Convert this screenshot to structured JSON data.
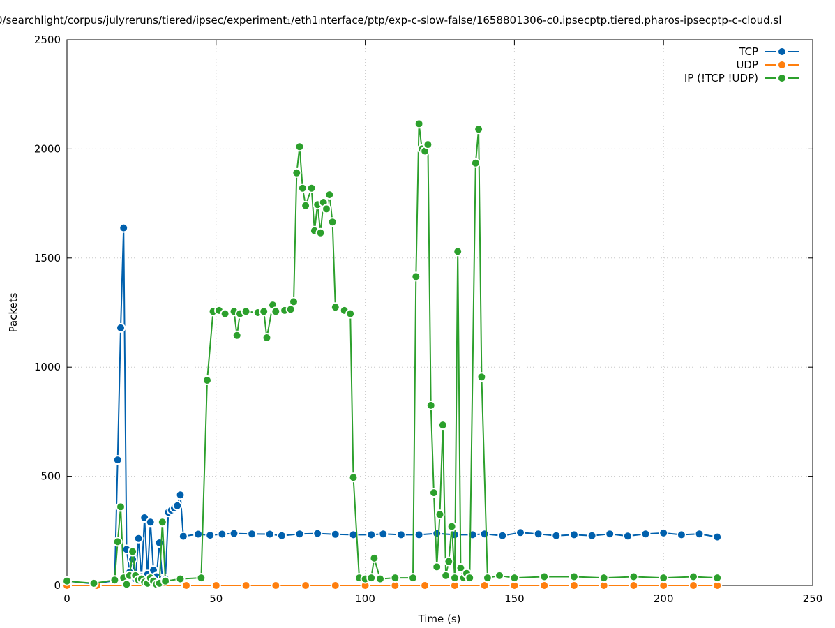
{
  "chart_data": {
    "type": "line",
    "title": "0/searchlight/corpus/julyreruns/tiered/ipsec/experiment₁/eth1ᵢnterface/ptp/exp-c-slow-false/1658801306-c0.ipsecptp.tiered.pharos-ipsecptp-c-cloud.sl",
    "xlabel": "Time (s)",
    "ylabel": "Packets",
    "xlim": [
      0,
      250
    ],
    "ylim": [
      0,
      2500
    ],
    "x_ticks": [
      "0",
      "50",
      "100",
      "150",
      "200",
      "250"
    ],
    "y_ticks": [
      "0",
      "500",
      "1000",
      "1500",
      "2000",
      "2500"
    ],
    "grid": true,
    "legend_position": "top-right",
    "series": [
      {
        "name": "TCP",
        "color": "#0060ad",
        "points": [
          [
            0,
            20
          ],
          [
            9,
            8
          ],
          [
            16,
            22
          ],
          [
            17,
            575
          ],
          [
            18,
            1180
          ],
          [
            19,
            1638
          ],
          [
            20,
            165
          ],
          [
            21,
            60
          ],
          [
            22,
            120
          ],
          [
            23,
            30
          ],
          [
            24,
            215
          ],
          [
            25,
            40
          ],
          [
            26,
            310
          ],
          [
            27,
            50
          ],
          [
            28,
            290
          ],
          [
            29,
            70
          ],
          [
            30,
            40
          ],
          [
            31,
            195
          ],
          [
            32,
            30
          ],
          [
            33,
            30
          ],
          [
            34,
            335
          ],
          [
            35,
            345
          ],
          [
            36,
            355
          ],
          [
            37,
            365
          ],
          [
            38,
            415
          ],
          [
            39,
            225
          ],
          [
            44,
            235
          ],
          [
            48,
            230
          ],
          [
            52,
            235
          ],
          [
            56,
            238
          ],
          [
            62,
            236
          ],
          [
            68,
            235
          ],
          [
            72,
            228
          ],
          [
            78,
            236
          ],
          [
            84,
            238
          ],
          [
            90,
            234
          ],
          [
            96,
            232
          ],
          [
            102,
            232
          ],
          [
            106,
            236
          ],
          [
            112,
            232
          ],
          [
            118,
            232
          ],
          [
            124,
            238
          ],
          [
            130,
            232
          ],
          [
            136,
            232
          ],
          [
            140,
            236
          ],
          [
            146,
            228
          ],
          [
            152,
            242
          ],
          [
            158,
            236
          ],
          [
            164,
            228
          ],
          [
            170,
            232
          ],
          [
            176,
            228
          ],
          [
            182,
            236
          ],
          [
            188,
            226
          ],
          [
            194,
            236
          ],
          [
            200,
            240
          ],
          [
            206,
            232
          ],
          [
            212,
            236
          ],
          [
            218,
            222
          ]
        ]
      },
      {
        "name": "UDP",
        "color": "#ff7f0e",
        "points": [
          [
            0,
            0
          ],
          [
            10,
            0
          ],
          [
            20,
            0
          ],
          [
            30,
            0
          ],
          [
            40,
            0
          ],
          [
            50,
            0
          ],
          [
            60,
            0
          ],
          [
            70,
            0
          ],
          [
            80,
            0
          ],
          [
            90,
            0
          ],
          [
            100,
            0
          ],
          [
            110,
            0
          ],
          [
            120,
            0
          ],
          [
            130,
            0
          ],
          [
            140,
            0
          ],
          [
            150,
            0
          ],
          [
            160,
            0
          ],
          [
            170,
            0
          ],
          [
            180,
            0
          ],
          [
            190,
            0
          ],
          [
            200,
            0
          ],
          [
            210,
            0
          ],
          [
            218,
            0
          ]
        ]
      },
      {
        "name": "IP (!TCP  !UDP)",
        "color": "#2ca02c",
        "points": [
          [
            0,
            20
          ],
          [
            9,
            10
          ],
          [
            16,
            25
          ],
          [
            17,
            200
          ],
          [
            18,
            360
          ],
          [
            19,
            35
          ],
          [
            20,
            5
          ],
          [
            21,
            45
          ],
          [
            22,
            155
          ],
          [
            23,
            45
          ],
          [
            24,
            25
          ],
          [
            25,
            30
          ],
          [
            26,
            15
          ],
          [
            27,
            10
          ],
          [
            28,
            35
          ],
          [
            29,
            20
          ],
          [
            30,
            5
          ],
          [
            31,
            10
          ],
          [
            32,
            290
          ],
          [
            33,
            20
          ],
          [
            38,
            30
          ],
          [
            45,
            35
          ],
          [
            47,
            940
          ],
          [
            49,
            1255
          ],
          [
            51,
            1260
          ],
          [
            53,
            1245
          ],
          [
            56,
            1255
          ],
          [
            57,
            1145
          ],
          [
            58,
            1245
          ],
          [
            60,
            1255
          ],
          [
            64,
            1250
          ],
          [
            66,
            1255
          ],
          [
            67,
            1135
          ],
          [
            69,
            1285
          ],
          [
            70,
            1255
          ],
          [
            73,
            1260
          ],
          [
            75,
            1265
          ],
          [
            76,
            1300
          ],
          [
            77,
            1890
          ],
          [
            78,
            2010
          ],
          [
            79,
            1820
          ],
          [
            80,
            1740
          ],
          [
            82,
            1820
          ],
          [
            83,
            1625
          ],
          [
            84,
            1745
          ],
          [
            85,
            1615
          ],
          [
            86,
            1755
          ],
          [
            87,
            1725
          ],
          [
            88,
            1790
          ],
          [
            89,
            1665
          ],
          [
            90,
            1275
          ],
          [
            93,
            1260
          ],
          [
            95,
            1245
          ],
          [
            96,
            495
          ],
          [
            98,
            35
          ],
          [
            100,
            30
          ],
          [
            102,
            35
          ],
          [
            103,
            125
          ],
          [
            105,
            30
          ],
          [
            110,
            35
          ],
          [
            116,
            35
          ],
          [
            117,
            1415
          ],
          [
            118,
            2115
          ],
          [
            119,
            2000
          ],
          [
            120,
            1990
          ],
          [
            121,
            2020
          ],
          [
            122,
            825
          ],
          [
            123,
            425
          ],
          [
            124,
            85
          ],
          [
            125,
            325
          ],
          [
            126,
            735
          ],
          [
            127,
            45
          ],
          [
            128,
            110
          ],
          [
            129,
            270
          ],
          [
            130,
            35
          ],
          [
            131,
            1530
          ],
          [
            132,
            80
          ],
          [
            133,
            35
          ],
          [
            134,
            55
          ],
          [
            135,
            35
          ],
          [
            137,
            1935
          ],
          [
            138,
            2090
          ],
          [
            139,
            955
          ],
          [
            141,
            35
          ],
          [
            145,
            45
          ],
          [
            150,
            35
          ],
          [
            160,
            40
          ],
          [
            170,
            40
          ],
          [
            180,
            35
          ],
          [
            190,
            40
          ],
          [
            200,
            35
          ],
          [
            210,
            40
          ],
          [
            218,
            35
          ]
        ]
      }
    ]
  }
}
